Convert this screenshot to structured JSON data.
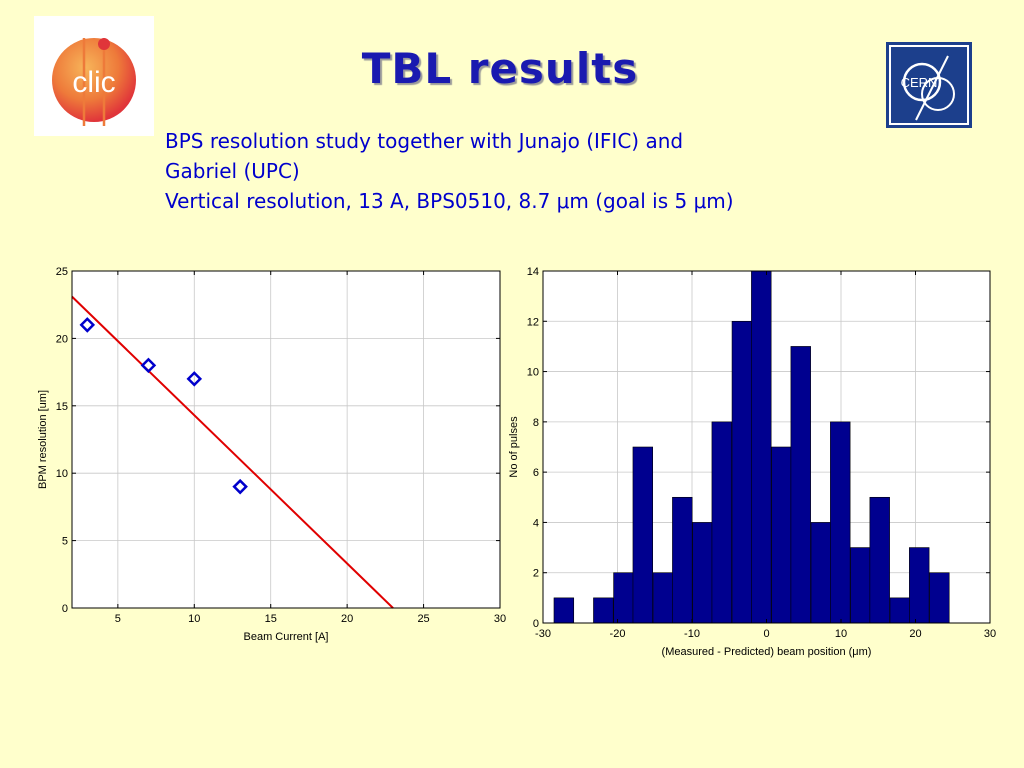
{
  "header": {
    "title": "TBL results",
    "subtitle_lines": [
      "BPS resolution study together with Junajo (IFIC) and",
      "Gabriel (UPC)",
      "Vertical resolution, 13 A, BPS0510, 8.7 μm (goal is 5 μm)"
    ],
    "logos": {
      "left": {
        "icon": "clic-logo",
        "text": "clic"
      },
      "right": {
        "icon": "cern-logo",
        "text": "CERN"
      }
    }
  },
  "colors": {
    "title": "#1A1AB0",
    "subtitle": "#0000CC",
    "background": "#FFFFCC",
    "bar_fill": "#00008F",
    "marker": "#0000CC",
    "fit_line": "#E00000"
  },
  "chart_data": [
    {
      "type": "scatter",
      "xlabel": "Beam Current [A]",
      "ylabel": "BPM resolution [um]",
      "xlim": [
        2,
        30
      ],
      "ylim": [
        0,
        25
      ],
      "xticks": [
        5,
        10,
        15,
        20,
        25,
        30
      ],
      "yticks": [
        0,
        5,
        10,
        15,
        20,
        25
      ],
      "grid": true,
      "series": [
        {
          "marker": "diamond",
          "x": [
            3,
            7,
            10,
            13
          ],
          "y": [
            21,
            18,
            17,
            9
          ]
        }
      ],
      "fit_line": {
        "x": [
          2,
          23
        ],
        "y": [
          23.1,
          0
        ]
      }
    },
    {
      "type": "bar",
      "xlabel": "(Measured - Predicted) beam position (μm)",
      "ylabel": "No of pulses",
      "xlim": [
        -30,
        30
      ],
      "ylim": [
        0,
        14
      ],
      "xticks": [
        -30,
        -20,
        -10,
        0,
        10,
        20,
        30
      ],
      "yticks": [
        0,
        2,
        4,
        6,
        8,
        10,
        12,
        14
      ],
      "grid": true,
      "bin_width": 2.65,
      "categories": [
        -27.2,
        -24.5,
        -21.9,
        -19.2,
        -16.6,
        -13.9,
        -11.3,
        -8.6,
        -6.0,
        -3.3,
        -0.7,
        2.0,
        4.6,
        7.3,
        9.9,
        12.6,
        15.2,
        17.9,
        20.5,
        23.2
      ],
      "values": [
        1,
        0,
        1,
        2,
        7,
        2,
        5,
        4,
        8,
        12,
        14,
        7,
        11,
        4,
        8,
        3,
        5,
        1,
        3,
        2
      ]
    }
  ]
}
